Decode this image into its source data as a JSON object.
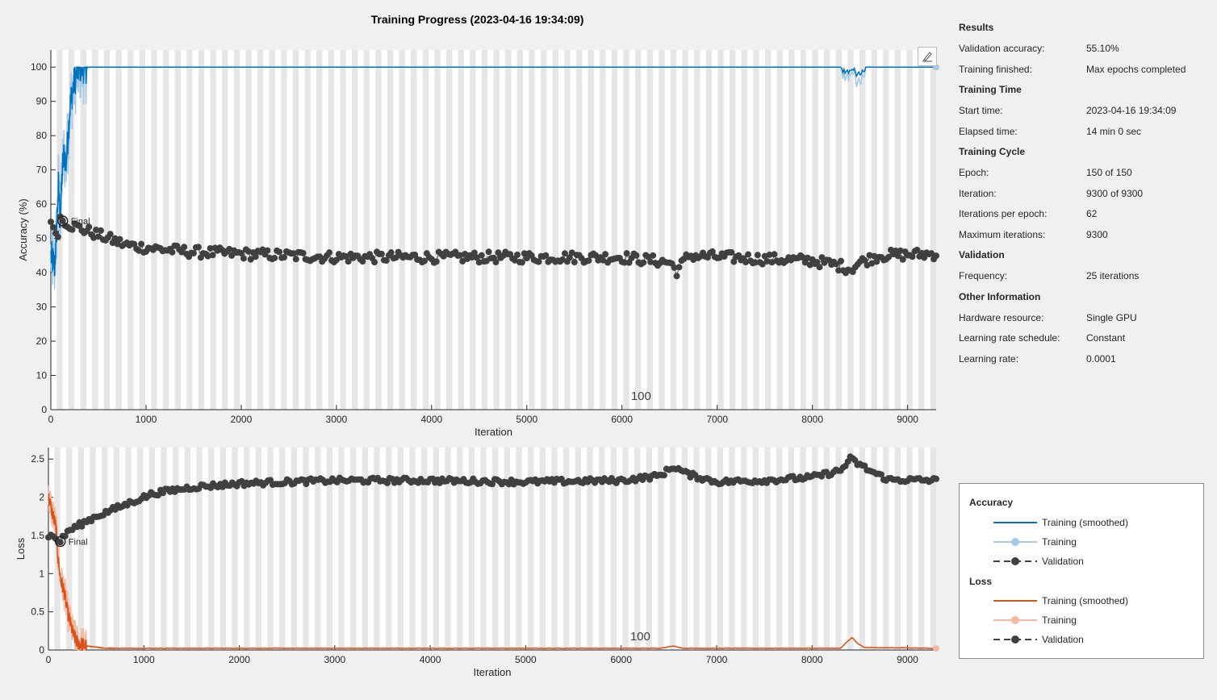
{
  "title": "Training Progress (2023-04-16 19:34:09)",
  "info": {
    "sections": [
      {
        "heading": "Results",
        "rows": [
          {
            "k": "Validation accuracy:",
            "v": "55.10%"
          },
          {
            "k": "Training finished:",
            "v": "Max epochs completed"
          }
        ]
      },
      {
        "heading": "Training Time",
        "rows": [
          {
            "k": "Start time:",
            "v": "2023-04-16 19:34:09"
          },
          {
            "k": "Elapsed time:",
            "v": "14 min 0 sec"
          }
        ]
      },
      {
        "heading": "Training Cycle",
        "rows": [
          {
            "k": "Epoch:",
            "v": "150 of 150"
          },
          {
            "k": "Iteration:",
            "v": "9300 of 9300"
          },
          {
            "k": "Iterations per epoch:",
            "v": "62"
          },
          {
            "k": "Maximum iterations:",
            "v": "9300"
          }
        ]
      },
      {
        "heading": "Validation",
        "rows": [
          {
            "k": "Frequency:",
            "v": "25 iterations"
          }
        ]
      },
      {
        "heading": "Other Information",
        "rows": [
          {
            "k": "Hardware resource:",
            "v": "Single GPU"
          },
          {
            "k": "Learning rate schedule:",
            "v": "Constant"
          },
          {
            "k": "Learning rate:",
            "v": "0.0001"
          }
        ]
      }
    ]
  },
  "legend": {
    "accuracy_heading": "Accuracy",
    "loss_heading": "Loss",
    "smoothed": "Training (smoothed)",
    "training": "Training",
    "validation": "Validation"
  },
  "toolbar": {
    "edit_icon": "pencil-axes-icon"
  },
  "colors": {
    "acc_smoothed": "#0072bd",
    "acc_raw": "#a6c9e8",
    "loss_smoothed": "#d95319",
    "loss_raw": "#f2b8a4",
    "validation": "#404040",
    "epoch_band": "#e6e6e6"
  },
  "chart_data": [
    {
      "type": "line",
      "name": "accuracy",
      "xlabel": "Iteration",
      "ylabel": "Accuracy (%)",
      "xlim": [
        0,
        9300
      ],
      "ylim": [
        0,
        105
      ],
      "xticks": [
        0,
        1000,
        2000,
        3000,
        4000,
        5000,
        6000,
        7000,
        8000,
        9000
      ],
      "yticks": [
        0,
        10,
        20,
        30,
        40,
        50,
        60,
        70,
        80,
        90,
        100
      ],
      "epoch_marker_label": "100",
      "epoch_marker_iteration": 6200,
      "final_label": "Final",
      "final_value": [
        125,
        55.1
      ],
      "iterations_per_epoch": 62,
      "validation_frequency": 25,
      "smoothed_key": [
        [
          0,
          45
        ],
        [
          40,
          42
        ],
        [
          60,
          52
        ],
        [
          80,
          66
        ],
        [
          100,
          55
        ],
        [
          120,
          70
        ],
        [
          140,
          75
        ],
        [
          160,
          72
        ],
        [
          180,
          80
        ],
        [
          200,
          88
        ],
        [
          220,
          92
        ],
        [
          250,
          96
        ],
        [
          280,
          99
        ],
        [
          300,
          100
        ],
        [
          9300,
          100
        ]
      ],
      "validation_key": [
        [
          0,
          56
        ],
        [
          25,
          52
        ],
        [
          75,
          52
        ],
        [
          100,
          56
        ],
        [
          150,
          55
        ],
        [
          200,
          54
        ],
        [
          300,
          53
        ],
        [
          500,
          51
        ],
        [
          800,
          48
        ],
        [
          1100,
          47
        ],
        [
          1500,
          46
        ],
        [
          2000,
          45.5
        ],
        [
          3000,
          44.5
        ],
        [
          4000,
          44.5
        ],
        [
          5000,
          44.5
        ],
        [
          6000,
          44.5
        ],
        [
          6500,
          43
        ],
        [
          6575,
          40.5
        ],
        [
          6700,
          45
        ],
        [
          7500,
          44
        ],
        [
          8000,
          43.5
        ],
        [
          8300,
          42
        ],
        [
          8400,
          41
        ],
        [
          8500,
          43
        ],
        [
          8700,
          45
        ],
        [
          9300,
          45.5
        ]
      ]
    },
    {
      "type": "line",
      "name": "loss",
      "xlabel": "Iteration",
      "ylabel": "Loss",
      "xlim": [
        0,
        9300
      ],
      "ylim": [
        0,
        2.65
      ],
      "xticks": [
        0,
        1000,
        2000,
        3000,
        4000,
        5000,
        6000,
        7000,
        8000,
        9000
      ],
      "yticks": [
        0,
        0.5,
        1,
        1.5,
        2,
        2.5
      ],
      "epoch_marker_label": "100",
      "epoch_marker_iteration": 6200,
      "final_label": "Final",
      "final_value": [
        125,
        1.42
      ],
      "iterations_per_epoch": 62,
      "validation_frequency": 25,
      "smoothed_key": [
        [
          0,
          2.0
        ],
        [
          40,
          1.8
        ],
        [
          80,
          1.6
        ],
        [
          100,
          1.2
        ],
        [
          130,
          0.9
        ],
        [
          160,
          0.8
        ],
        [
          200,
          0.5
        ],
        [
          230,
          0.35
        ],
        [
          260,
          0.2
        ],
        [
          300,
          0.1
        ],
        [
          400,
          0.05
        ],
        [
          600,
          0.02
        ],
        [
          6400,
          0.02
        ],
        [
          6550,
          0.05
        ],
        [
          6650,
          0.02
        ],
        [
          8300,
          0.02
        ],
        [
          8380,
          0.12
        ],
        [
          8420,
          0.16
        ],
        [
          8480,
          0.08
        ],
        [
          8550,
          0.03
        ],
        [
          9300,
          0.02
        ]
      ],
      "validation_key": [
        [
          0,
          1.5
        ],
        [
          50,
          1.48
        ],
        [
          125,
          1.42
        ],
        [
          200,
          1.55
        ],
        [
          300,
          1.62
        ],
        [
          500,
          1.75
        ],
        [
          800,
          1.9
        ],
        [
          1100,
          2.05
        ],
        [
          1500,
          2.13
        ],
        [
          2000,
          2.18
        ],
        [
          3000,
          2.22
        ],
        [
          4000,
          2.22
        ],
        [
          5000,
          2.2
        ],
        [
          6000,
          2.22
        ],
        [
          6400,
          2.28
        ],
        [
          6550,
          2.4
        ],
        [
          6700,
          2.3
        ],
        [
          7000,
          2.2
        ],
        [
          7500,
          2.22
        ],
        [
          8000,
          2.26
        ],
        [
          8300,
          2.35
        ],
        [
          8400,
          2.5
        ],
        [
          8600,
          2.35
        ],
        [
          8800,
          2.23
        ],
        [
          9300,
          2.22
        ]
      ]
    }
  ]
}
